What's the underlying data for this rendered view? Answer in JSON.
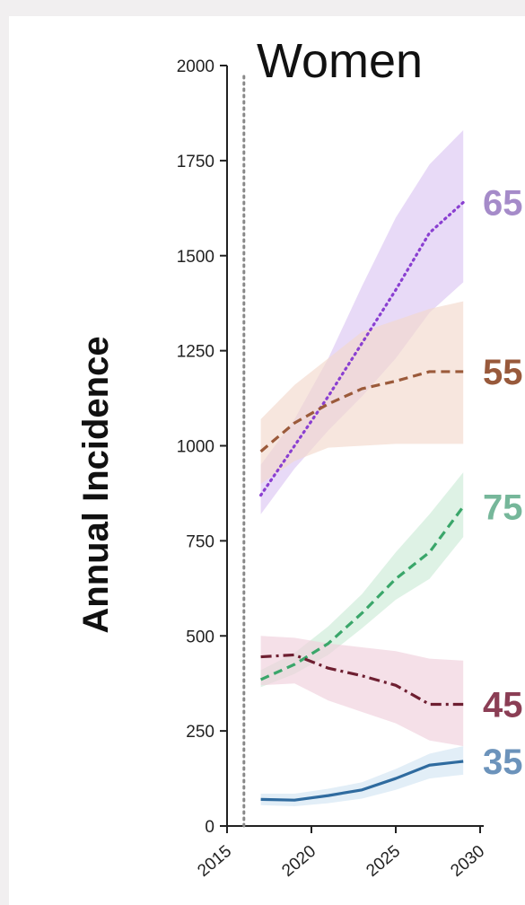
{
  "chart_data": {
    "type": "line",
    "title": "Women",
    "xlabel": "",
    "ylabel": "Annual Incidence",
    "xlim": [
      2015,
      2030
    ],
    "ylim": [
      0,
      2000
    ],
    "x_ticks": [
      2015,
      2020,
      2025,
      2030
    ],
    "y_ticks": [
      0,
      250,
      500,
      750,
      1000,
      1250,
      1500,
      1750,
      2000
    ],
    "reference_line_x": 2016,
    "x": [
      2017,
      2019,
      2021,
      2023,
      2025,
      2027,
      2029
    ],
    "series": [
      {
        "name": "65",
        "color": "#8a3fd1",
        "band_color": "#dcc6f3",
        "label_color": "#a58bc9",
        "dash": "dotted",
        "values": [
          870,
          1000,
          1130,
          1270,
          1410,
          1560,
          1640
        ],
        "lower": [
          820,
          940,
          1040,
          1130,
          1230,
          1350,
          1430
        ],
        "upper": [
          950,
          1070,
          1230,
          1420,
          1600,
          1740,
          1830
        ]
      },
      {
        "name": "55",
        "color": "#9b5a3a",
        "band_color": "#f2d9cd",
        "label_color": "#98593b",
        "dash": "dashed",
        "values": [
          985,
          1060,
          1110,
          1150,
          1170,
          1195,
          1195
        ],
        "lower": [
          900,
          960,
          995,
          1000,
          1005,
          1005,
          1005
        ],
        "upper": [
          1070,
          1160,
          1230,
          1300,
          1330,
          1360,
          1380
        ]
      },
      {
        "name": "75",
        "color": "#3aa66a",
        "band_color": "#cdebd7",
        "label_color": "#76b79a",
        "dash": "dashed",
        "values": [
          385,
          425,
          480,
          560,
          650,
          720,
          840
        ],
        "lower": [
          365,
          400,
          450,
          520,
          595,
          650,
          760
        ],
        "upper": [
          410,
          455,
          525,
          610,
          720,
          820,
          930
        ]
      },
      {
        "name": "45",
        "color": "#6e1f31",
        "band_color": "#f0cfdb",
        "label_color": "#8b3e55",
        "dash": "dashdot",
        "values": [
          445,
          450,
          415,
          395,
          370,
          320,
          320
        ],
        "lower": [
          370,
          375,
          330,
          300,
          270,
          225,
          210
        ],
        "upper": [
          500,
          495,
          480,
          470,
          460,
          440,
          435
        ]
      },
      {
        "name": "35",
        "color": "#2f6b9f",
        "band_color": "#d3e5f3",
        "label_color": "#6c93bb",
        "dash": "solid",
        "values": [
          70,
          68,
          80,
          95,
          125,
          160,
          170
        ],
        "lower": [
          55,
          52,
          60,
          72,
          95,
          125,
          135
        ],
        "upper": [
          85,
          85,
          98,
          115,
          150,
          190,
          210
        ]
      }
    ]
  }
}
